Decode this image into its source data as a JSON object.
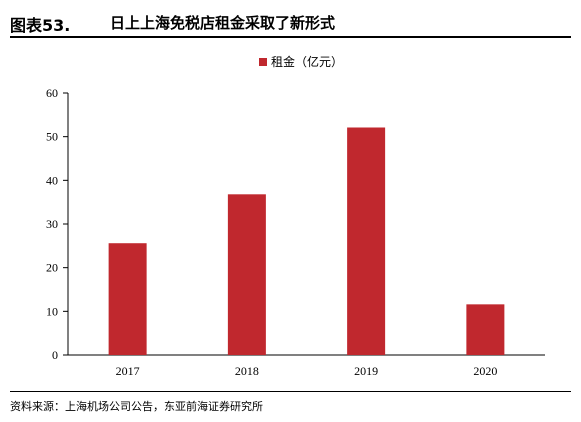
{
  "header": {
    "figure_label": "图表53.",
    "figure_title": "日上上海免税店租金采取了新形式"
  },
  "source": {
    "text": "资料来源：上海机场公司公告，东亚前海证券研究所"
  },
  "colors": {
    "bar": "#C0282E",
    "axis": "#000000"
  },
  "chart_data": {
    "type": "bar",
    "title": "",
    "xlabel": "",
    "ylabel": "",
    "categories": [
      "2017",
      "2018",
      "2019",
      "2020"
    ],
    "series": [
      {
        "name": "租金（亿元）",
        "values": [
          25.6,
          36.8,
          52.1,
          11.6
        ]
      }
    ],
    "ylim": [
      0,
      60
    ],
    "yticks": [
      0,
      10,
      20,
      30,
      40,
      50,
      60
    ],
    "grid": false,
    "legend_position": "top-center"
  }
}
